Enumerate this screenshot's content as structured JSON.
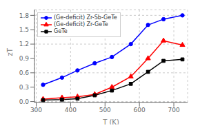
{
  "chart_data": {
    "type": "line",
    "xlabel": "T (K)",
    "ylabel": "zT",
    "x": [
      320,
      375,
      420,
      470,
      520,
      575,
      625,
      670,
      725
    ],
    "series": [
      {
        "name": "(Ge-deficit) Zr-Sb-GeTe",
        "color": "#0000ff",
        "marker": "circle",
        "values": [
          0.35,
          0.5,
          0.65,
          0.8,
          0.93,
          1.2,
          1.6,
          1.72,
          1.8
        ]
      },
      {
        "name": "(Ge-deficit) Zr-GeTe",
        "color": "#ff0000",
        "marker": "triangle",
        "values": [
          0.05,
          0.08,
          0.1,
          0.15,
          0.3,
          0.52,
          0.9,
          1.27,
          1.18
        ]
      },
      {
        "name": "GeTe",
        "color": "#000000",
        "marker": "square",
        "values": [
          0.03,
          0.04,
          0.06,
          0.13,
          0.23,
          0.37,
          0.62,
          0.85,
          0.88
        ]
      }
    ],
    "xlim": [
      295,
      740
    ],
    "ylim": [
      -0.02,
      1.92
    ],
    "xticks": [
      300,
      400,
      500,
      600,
      700
    ],
    "yticks": [
      {
        "value": 0.0,
        "label": "0.0"
      },
      0.3,
      0.6,
      0.9,
      1.2,
      1.5,
      1.8
    ],
    "grid": true,
    "legend": "upper left"
  }
}
